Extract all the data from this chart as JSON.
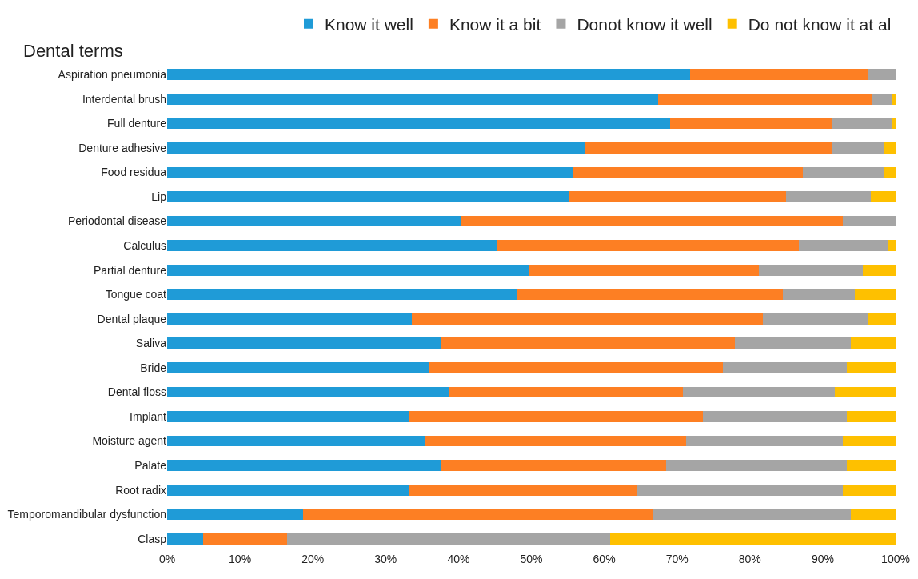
{
  "chart_data": {
    "type": "bar",
    "orientation": "horizontal",
    "stacked": true,
    "ylabel": "Dental terms",
    "categories": [
      "Aspiration pneumonia",
      "Interdental brush",
      "Full denture",
      "Denture adhesive",
      "Food residua",
      "Lip",
      "Periodontal disease",
      "Calculus",
      "Partial denture",
      "Tongue coat",
      "Dental plaque",
      "Saliva",
      "Bride",
      "Dental floss",
      "Implant",
      "Moisture agent",
      "Palate",
      "Root radix",
      "Temporomandibular dysfunction",
      "Clasp"
    ],
    "series": [
      {
        "name": "Know it well",
        "color": "#1f9bd7",
        "values": [
          71.8,
          67.4,
          69.0,
          57.3,
          55.8,
          55.2,
          40.3,
          45.3,
          49.7,
          48.1,
          33.6,
          37.5,
          35.9,
          38.6,
          33.1,
          35.3,
          37.5,
          33.1,
          18.7,
          4.9
        ]
      },
      {
        "name": "Know it a bit",
        "color": "#fd7f23",
        "values": [
          24.4,
          29.3,
          22.2,
          33.9,
          31.5,
          29.8,
          52.5,
          41.4,
          31.5,
          36.4,
          48.2,
          40.4,
          40.4,
          32.2,
          40.4,
          35.9,
          31.0,
          31.3,
          48.0,
          11.6
        ]
      },
      {
        "name": "Donot know it well",
        "color": "#a5a5a5",
        "values": [
          3.8,
          2.7,
          8.2,
          7.1,
          11.0,
          11.6,
          7.2,
          12.3,
          14.3,
          9.9,
          14.4,
          16.0,
          17.0,
          20.9,
          19.8,
          21.6,
          24.8,
          28.4,
          27.2,
          44.3
        ]
      },
      {
        "name": "Do not know it at al",
        "color": "#fec000",
        "values": [
          0,
          0.6,
          0.6,
          1.7,
          1.7,
          3.4,
          0,
          1.0,
          4.5,
          5.6,
          3.8,
          6.1,
          6.7,
          8.3,
          6.7,
          7.2,
          6.7,
          7.2,
          6.1,
          39.2
        ]
      }
    ],
    "xlim": [
      0,
      100
    ],
    "xticks": [
      {
        "value": 0,
        "label": "0%"
      },
      {
        "value": 10,
        "label": "10%"
      },
      {
        "value": 20,
        "label": "20%"
      },
      {
        "value": 30,
        "label": "30%"
      },
      {
        "value": 40,
        "label": "40%"
      },
      {
        "value": 50,
        "label": "50%"
      },
      {
        "value": 60,
        "label": "60%"
      },
      {
        "value": 70,
        "label": "70%"
      },
      {
        "value": 80,
        "label": "80%"
      },
      {
        "value": 90,
        "label": "90%"
      },
      {
        "value": 100,
        "label": "100%"
      }
    ],
    "legend": "top"
  }
}
